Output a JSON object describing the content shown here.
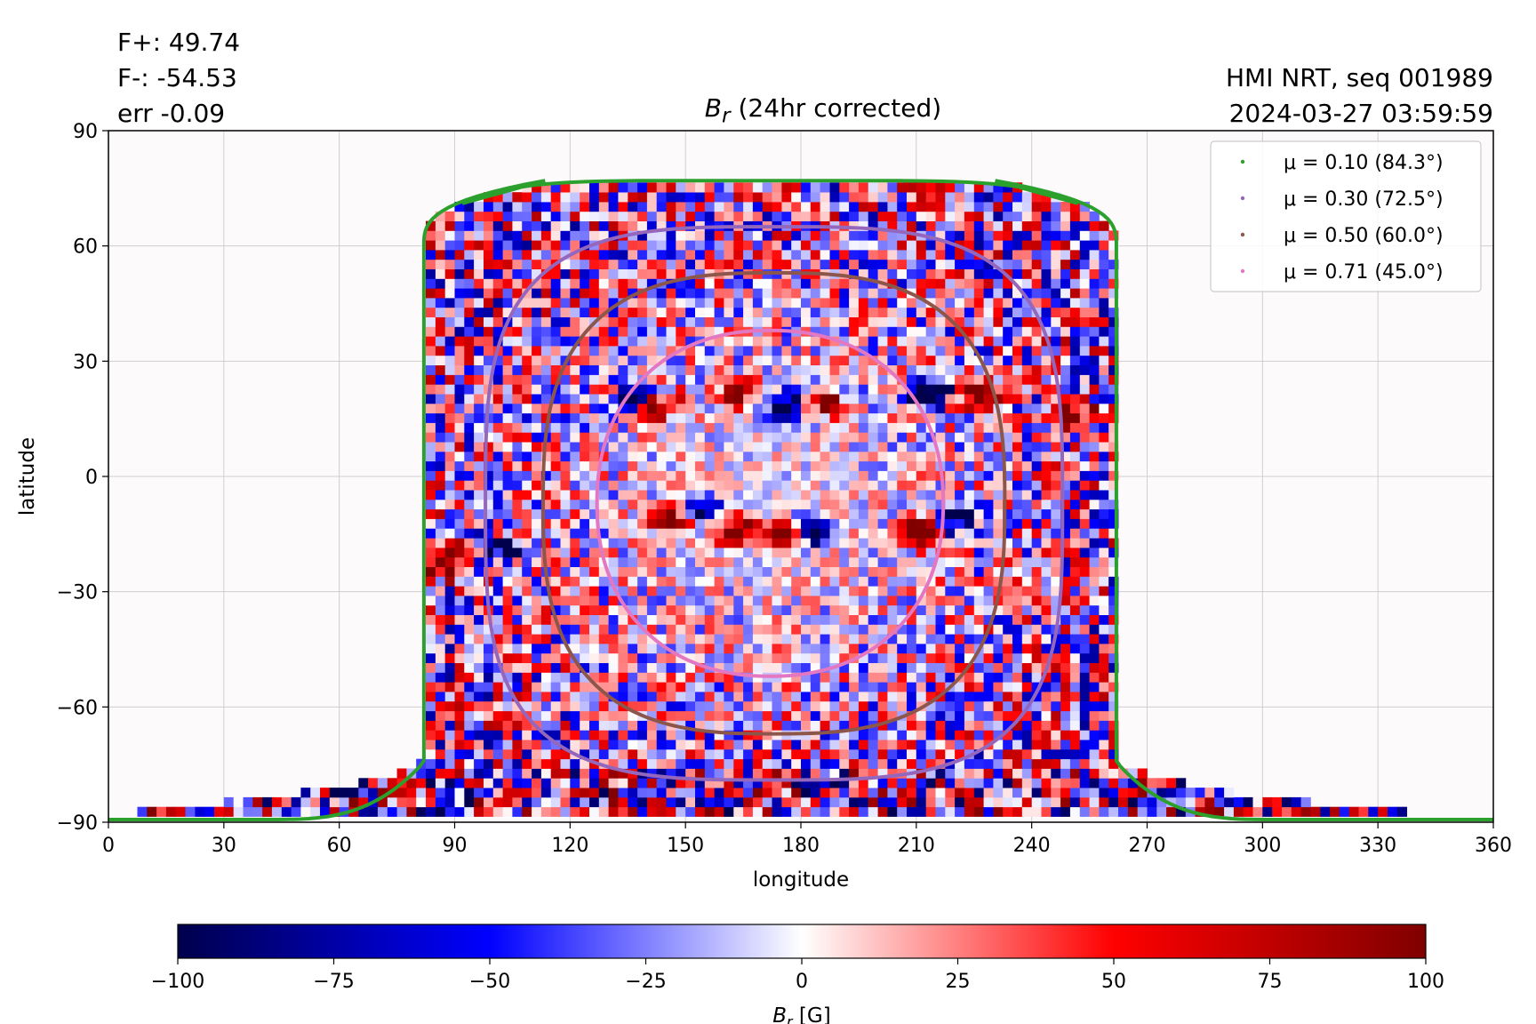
{
  "header": {
    "stats": [
      "F+: 49.74",
      "F-: -54.53",
      "err -0.09"
    ],
    "source": [
      "HMI NRT, seq 001989",
      "2024-03-27 03:59:59"
    ],
    "title_symbol": "B",
    "title_sub": "r",
    "title_rest": " (24hr corrected)"
  },
  "chart_data": {
    "type": "heatmap",
    "title": "B_r (24hr corrected)",
    "xlabel": "longitude",
    "ylabel": "latitude",
    "xlim": [
      0,
      360
    ],
    "ylim": [
      -90,
      90
    ],
    "xticks": [
      0,
      30,
      60,
      90,
      120,
      150,
      180,
      210,
      240,
      270,
      300,
      330,
      360
    ],
    "yticks": [
      -90,
      -60,
      -30,
      0,
      30,
      60,
      90
    ],
    "ytick_labels": [
      "−90",
      "−60",
      "−30",
      "0",
      "30",
      "60",
      "90"
    ],
    "grid": true,
    "legend_position": "top-right",
    "colorscale": "seismic",
    "colorbar": {
      "label_symbol": "B",
      "label_sub": "r",
      "label_rest": " [G]",
      "range": [
        -100,
        100
      ],
      "ticks": [
        -100,
        -75,
        -50,
        -25,
        0,
        25,
        50,
        75,
        100
      ],
      "tick_labels": [
        "−100",
        "−75",
        "−50",
        "−25",
        "0",
        "25",
        "50",
        "75",
        "100"
      ]
    },
    "disk_center": {
      "lon": 172,
      "lat": -7
    },
    "series": [
      {
        "name": "μ = 0.10 (84.3°)",
        "mu": 0.1,
        "angle_deg": 84.3,
        "color": "#2ca02c"
      },
      {
        "name": "μ = 0.30 (72.5°)",
        "mu": 0.3,
        "angle_deg": 72.5,
        "color": "#9467bd"
      },
      {
        "name": "μ = 0.50 (60.0°)",
        "mu": 0.5,
        "angle_deg": 60.0,
        "color": "#8c564b"
      },
      {
        "name": "μ = 0.71 (45.0°)",
        "mu": 0.71,
        "angle_deg": 45.0,
        "color": "#e377c2"
      }
    ],
    "active_regions": [
      {
        "lon": 138,
        "lat": 20,
        "polarity": "negative",
        "strength": 90
      },
      {
        "lon": 142,
        "lat": 19,
        "polarity": "positive",
        "strength": 85
      },
      {
        "lon": 163,
        "lat": 22,
        "polarity": "positive",
        "strength": 80
      },
      {
        "lon": 177,
        "lat": 19,
        "polarity": "negative",
        "strength": 90
      },
      {
        "lon": 184,
        "lat": 19,
        "polarity": "positive",
        "strength": 85
      },
      {
        "lon": 214,
        "lat": 22,
        "polarity": "negative",
        "strength": 95
      },
      {
        "lon": 226,
        "lat": 21,
        "polarity": "positive",
        "strength": 90
      },
      {
        "lon": 251,
        "lat": 17,
        "polarity": "positive",
        "strength": 85
      },
      {
        "lon": 212,
        "lat": -14,
        "polarity": "positive",
        "strength": 100
      },
      {
        "lon": 220,
        "lat": -11,
        "polarity": "negative",
        "strength": 100
      },
      {
        "lon": 183,
        "lat": -14,
        "polarity": "negative",
        "strength": 85
      },
      {
        "lon": 176,
        "lat": -15,
        "polarity": "positive",
        "strength": 75
      },
      {
        "lon": 163,
        "lat": -14,
        "polarity": "positive",
        "strength": 75
      },
      {
        "lon": 147,
        "lat": -11,
        "polarity": "positive",
        "strength": 70
      },
      {
        "lon": 154,
        "lat": -9,
        "polarity": "negative",
        "strength": 70
      },
      {
        "lon": 102,
        "lat": -19,
        "polarity": "negative",
        "strength": 70
      },
      {
        "lon": 88,
        "lat": -22,
        "polarity": "positive",
        "strength": 70
      }
    ]
  }
}
